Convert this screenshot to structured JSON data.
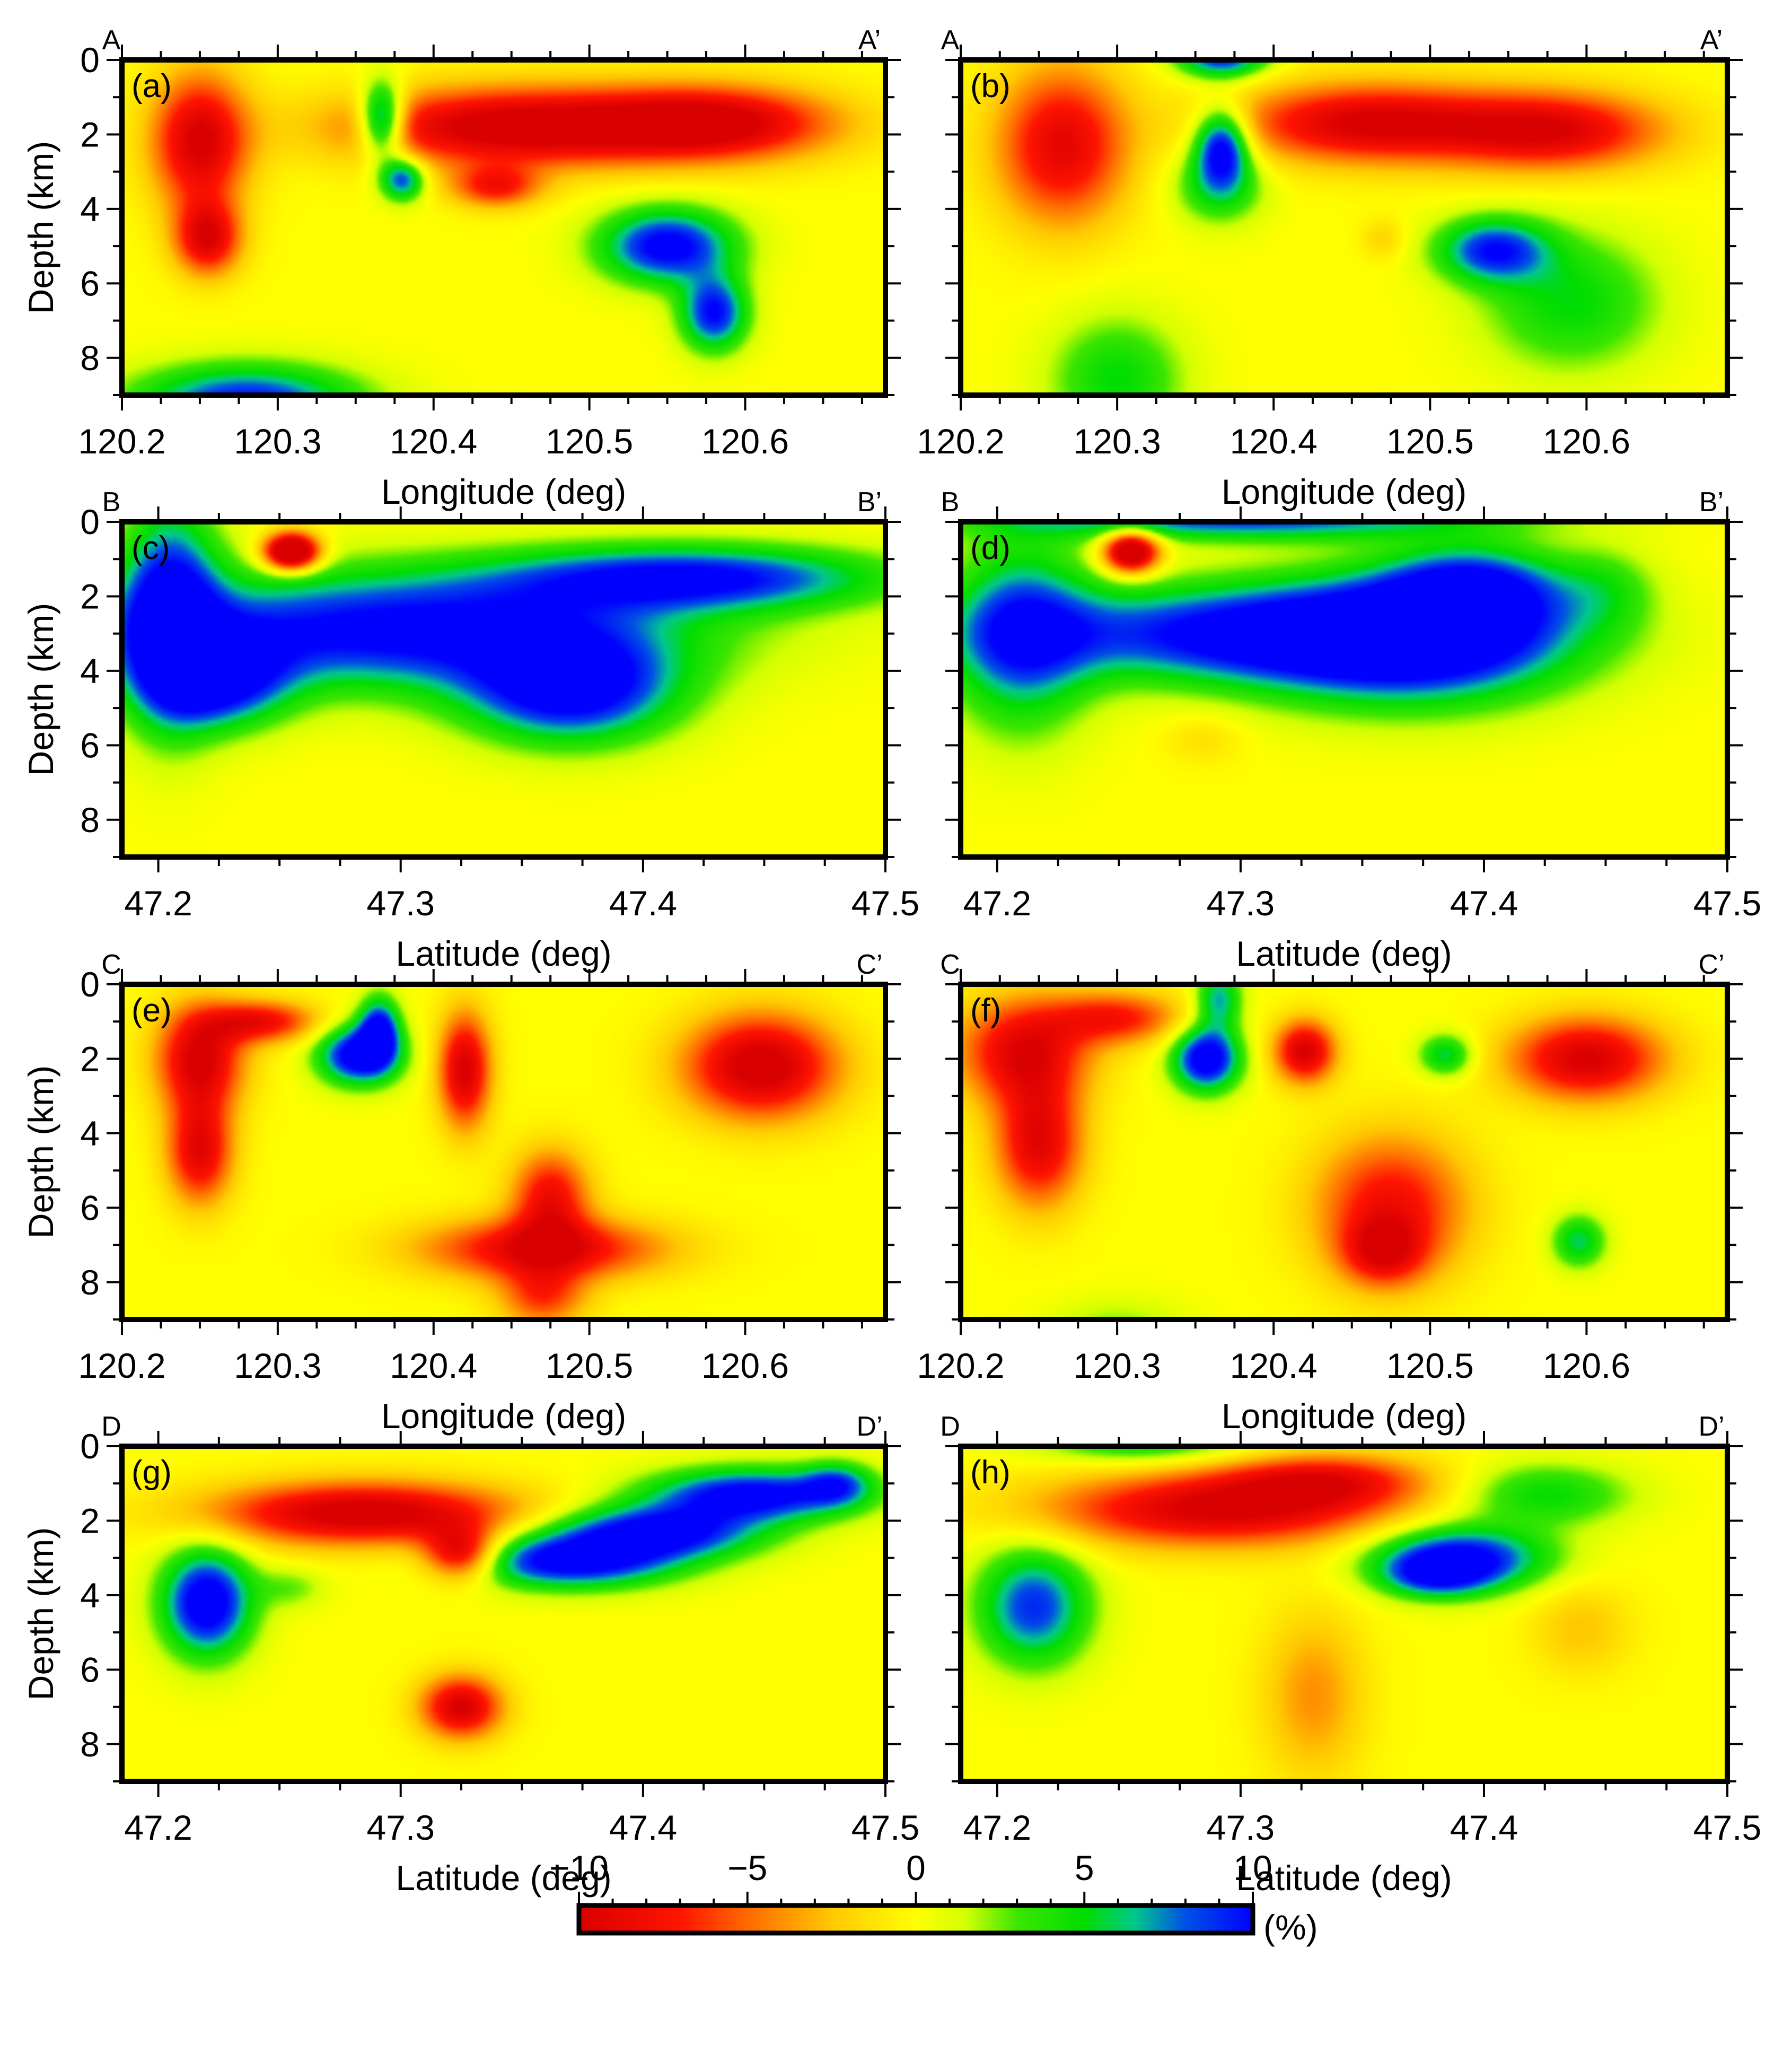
{
  "chart_data": {
    "type": "heatmap",
    "panels": [
      {
        "label": "(a)",
        "start": "A",
        "end": "A’",
        "xlabel": "Longitude (deg)",
        "ylabel": "Depth (km)",
        "xlim": [
          120.2,
          120.69
        ],
        "xticks": [
          "120.2",
          "120.3",
          "120.4",
          "120.5",
          "120.6"
        ],
        "xtick_values": [
          120.2,
          120.3,
          120.4,
          120.5,
          120.6
        ],
        "ylim": [
          0,
          9
        ],
        "yticks": [
          "0",
          "2",
          "4",
          "6",
          "8"
        ],
        "ytick_values": [
          0,
          2,
          4,
          6,
          8
        ],
        "anomalies": [
          {
            "x": 120.25,
            "y": 2.2,
            "sx": 0.022,
            "sy": 1.3,
            "v": -10
          },
          {
            "x": 120.255,
            "y": 4.8,
            "sx": 0.015,
            "sy": 0.7,
            "v": -9
          },
          {
            "x": 120.367,
            "y": 1.6,
            "sx": 0.01,
            "sy": 0.7,
            "v": 11
          },
          {
            "x": 120.38,
            "y": 3.2,
            "sx": 0.01,
            "sy": 0.4,
            "v": 9
          },
          {
            "x": 120.45,
            "y": 1.8,
            "sx": 0.075,
            "sy": 0.75,
            "v": -11
          },
          {
            "x": 120.58,
            "y": 1.7,
            "sx": 0.055,
            "sy": 0.7,
            "v": -10
          },
          {
            "x": 120.44,
            "y": 3.4,
            "sx": 0.02,
            "sy": 0.4,
            "v": -7
          },
          {
            "x": 120.55,
            "y": 5.0,
            "sx": 0.03,
            "sy": 0.7,
            "v": 11
          },
          {
            "x": 120.58,
            "y": 6.8,
            "sx": 0.015,
            "sy": 0.7,
            "v": 10
          },
          {
            "x": 120.28,
            "y": 9.2,
            "sx": 0.05,
            "sy": 0.7,
            "v": 10
          }
        ]
      },
      {
        "label": "(b)",
        "start": "A",
        "end": "A’",
        "xlabel": "Longitude (deg)",
        "ylabel": "",
        "xlim": [
          120.2,
          120.69
        ],
        "xticks": [
          "120.2",
          "120.3",
          "120.4",
          "120.5",
          "120.6"
        ],
        "xtick_values": [
          120.2,
          120.3,
          120.4,
          120.5,
          120.6
        ],
        "ylim": [
          0,
          9
        ],
        "yticks": [],
        "ytick_values": [
          0,
          2,
          4,
          6,
          8
        ],
        "anomalies": [
          {
            "x": 120.265,
            "y": 2.3,
            "sx": 0.03,
            "sy": 1.5,
            "v": -9
          },
          {
            "x": 120.367,
            "y": 2.3,
            "sx": 0.012,
            "sy": 0.7,
            "v": 11
          },
          {
            "x": 120.365,
            "y": 3.4,
            "sx": 0.02,
            "sy": 0.7,
            "v": 5
          },
          {
            "x": 120.367,
            "y": -0.1,
            "sx": 0.02,
            "sy": 0.4,
            "v": 10
          },
          {
            "x": 120.46,
            "y": 1.7,
            "sx": 0.06,
            "sy": 0.75,
            "v": -10
          },
          {
            "x": 120.58,
            "y": 1.9,
            "sx": 0.05,
            "sy": 0.75,
            "v": -9
          },
          {
            "x": 120.54,
            "y": 5.1,
            "sx": 0.025,
            "sy": 0.6,
            "v": 9
          },
          {
            "x": 120.59,
            "y": 6.5,
            "sx": 0.04,
            "sy": 1.3,
            "v": 5
          },
          {
            "x": 120.3,
            "y": 8.6,
            "sx": 0.03,
            "sy": 1.2,
            "v": 5
          },
          {
            "x": 120.47,
            "y": 4.8,
            "sx": 0.01,
            "sy": 0.4,
            "v": -2
          }
        ]
      },
      {
        "label": "(c)",
        "start": "B",
        "end": "B’",
        "xlabel": "Latitude (deg)",
        "ylabel": "Depth (km)",
        "xlim": [
          47.185,
          47.5
        ],
        "xticks": [
          "47.2",
          "47.3",
          "47.4",
          "47.5"
        ],
        "xtick_values": [
          47.2,
          47.3,
          47.4,
          47.5
        ],
        "ylim": [
          0,
          9
        ],
        "yticks": [
          "0",
          "2",
          "4",
          "6",
          "8"
        ],
        "ytick_values": [
          0,
          2,
          4,
          6,
          8
        ],
        "anomalies": [
          {
            "x": 47.205,
            "y": 2.5,
            "sx": 0.014,
            "sy": 2.0,
            "v": 11
          },
          {
            "x": 47.3,
            "y": 2.9,
            "sx": 0.08,
            "sy": 1.1,
            "v": 11
          },
          {
            "x": 47.37,
            "y": 4.5,
            "sx": 0.03,
            "sy": 1.0,
            "v": 11
          },
          {
            "x": 47.42,
            "y": 1.5,
            "sx": 0.055,
            "sy": 0.6,
            "v": 10
          },
          {
            "x": 47.225,
            "y": 4.2,
            "sx": 0.02,
            "sy": 0.9,
            "v": 10
          },
          {
            "x": 47.255,
            "y": 0.8,
            "sx": 0.008,
            "sy": 0.35,
            "v": -16
          }
        ]
      },
      {
        "label": "(d)",
        "start": "B",
        "end": "B’",
        "xlabel": "Latitude (deg)",
        "ylabel": "",
        "xlim": [
          47.185,
          47.5
        ],
        "xticks": [
          "47.2",
          "47.3",
          "47.4",
          "47.5"
        ],
        "xtick_values": [
          47.2,
          47.3,
          47.4,
          47.5
        ],
        "ylim": [
          0,
          9
        ],
        "yticks": [],
        "ytick_values": [
          0,
          2,
          4,
          6,
          8
        ],
        "anomalies": [
          {
            "x": 47.21,
            "y": 3.0,
            "sx": 0.02,
            "sy": 1.8,
            "v": 8
          },
          {
            "x": 47.3,
            "y": 3.0,
            "sx": 0.07,
            "sy": 0.9,
            "v": 10
          },
          {
            "x": 47.37,
            "y": 3.2,
            "sx": 0.045,
            "sy": 1.2,
            "v": 11
          },
          {
            "x": 47.395,
            "y": 1.8,
            "sx": 0.025,
            "sy": 0.8,
            "v": 9
          },
          {
            "x": 47.3,
            "y": -0.1,
            "sx": 0.07,
            "sy": 0.4,
            "v": 9
          },
          {
            "x": 47.255,
            "y": 0.8,
            "sx": 0.008,
            "sy": 0.4,
            "v": -14
          },
          {
            "x": 47.285,
            "y": 5.8,
            "sx": 0.012,
            "sy": 0.5,
            "v": -1.5
          },
          {
            "x": 47.45,
            "y": 1.8,
            "sx": 0.015,
            "sy": 0.8,
            "v": 3
          }
        ]
      },
      {
        "label": "(e)",
        "start": "C",
        "end": "C’",
        "xlabel": "Longitude (deg)",
        "ylabel": "Depth (km)",
        "xlim": [
          120.2,
          120.69
        ],
        "xticks": [
          "120.2",
          "120.3",
          "120.4",
          "120.5",
          "120.6"
        ],
        "xtick_values": [
          120.2,
          120.3,
          120.4,
          120.5,
          120.6
        ],
        "ylim": [
          0,
          9
        ],
        "yticks": [
          "0",
          "2",
          "4",
          "6",
          "8"
        ],
        "ytick_values": [
          0,
          2,
          4,
          6,
          8
        ],
        "anomalies": [
          {
            "x": 120.25,
            "y": 2.0,
            "sx": 0.02,
            "sy": 1.0,
            "v": -10
          },
          {
            "x": 120.25,
            "y": 4.5,
            "sx": 0.015,
            "sy": 1.0,
            "v": -9
          },
          {
            "x": 120.29,
            "y": 1.0,
            "sx": 0.025,
            "sy": 0.4,
            "v": -8
          },
          {
            "x": 120.352,
            "y": 1.9,
            "sx": 0.018,
            "sy": 0.55,
            "v": 12
          },
          {
            "x": 120.365,
            "y": 1.2,
            "sx": 0.009,
            "sy": 0.6,
            "v": 10
          },
          {
            "x": 120.42,
            "y": 2.3,
            "sx": 0.012,
            "sy": 1.1,
            "v": -10
          },
          {
            "x": 120.61,
            "y": 2.2,
            "sx": 0.035,
            "sy": 1.0,
            "v": -11
          },
          {
            "x": 120.475,
            "y": 5.7,
            "sx": 0.018,
            "sy": 0.9,
            "v": -8
          },
          {
            "x": 120.47,
            "y": 7.1,
            "sx": 0.055,
            "sy": 0.6,
            "v": -9
          },
          {
            "x": 120.47,
            "y": 8.4,
            "sx": 0.02,
            "sy": 0.6,
            "v": -6
          }
        ]
      },
      {
        "label": "(f)",
        "start": "C",
        "end": "C’",
        "xlabel": "Longitude (deg)",
        "ylabel": "",
        "xlim": [
          120.2,
          120.69
        ],
        "xticks": [
          "120.2",
          "120.3",
          "120.4",
          "120.5",
          "120.6"
        ],
        "xtick_values": [
          120.2,
          120.3,
          120.4,
          120.5,
          120.6
        ],
        "ylim": [
          0,
          9
        ],
        "yticks": [],
        "ytick_values": [
          0,
          2,
          4,
          6,
          8
        ],
        "anomalies": [
          {
            "x": 120.24,
            "y": 1.8,
            "sx": 0.03,
            "sy": 1.0,
            "v": -9
          },
          {
            "x": 120.25,
            "y": 4.3,
            "sx": 0.02,
            "sy": 1.2,
            "v": -9
          },
          {
            "x": 120.3,
            "y": 0.9,
            "sx": 0.03,
            "sy": 0.5,
            "v": -7
          },
          {
            "x": 120.357,
            "y": 2.0,
            "sx": 0.015,
            "sy": 0.6,
            "v": 12
          },
          {
            "x": 120.365,
            "y": 0.4,
            "sx": 0.01,
            "sy": 0.6,
            "v": 7
          },
          {
            "x": 120.42,
            "y": 1.8,
            "sx": 0.014,
            "sy": 0.6,
            "v": -10
          },
          {
            "x": 120.51,
            "y": 1.9,
            "sx": 0.012,
            "sy": 0.4,
            "v": 6
          },
          {
            "x": 120.6,
            "y": 2.0,
            "sx": 0.035,
            "sy": 0.8,
            "v": -10
          },
          {
            "x": 120.475,
            "y": 6.0,
            "sx": 0.035,
            "sy": 1.4,
            "v": -8
          },
          {
            "x": 120.47,
            "y": 7.2,
            "sx": 0.018,
            "sy": 0.6,
            "v": -6
          },
          {
            "x": 120.595,
            "y": 6.9,
            "sx": 0.012,
            "sy": 0.5,
            "v": 6
          },
          {
            "x": 120.3,
            "y": 9.3,
            "sx": 0.03,
            "sy": 0.6,
            "v": 2.5
          }
        ]
      },
      {
        "label": "(g)",
        "start": "D",
        "end": "D’",
        "xlabel": "Latitude (deg)",
        "ylabel": "Depth (km)",
        "xlim": [
          47.185,
          47.5
        ],
        "xticks": [
          "47.2",
          "47.3",
          "47.4",
          "47.5"
        ],
        "xtick_values": [
          47.2,
          47.3,
          47.4,
          47.5
        ],
        "ylim": [
          0,
          9
        ],
        "yticks": [
          "0",
          "2",
          "4",
          "6",
          "8"
        ],
        "ytick_values": [
          0,
          2,
          4,
          6,
          8
        ],
        "anomalies": [
          {
            "x": 47.285,
            "y": 1.8,
            "sx": 0.045,
            "sy": 0.6,
            "v": -11
          },
          {
            "x": 47.325,
            "y": 2.9,
            "sx": 0.011,
            "sy": 0.5,
            "v": -10
          },
          {
            "x": 47.22,
            "y": 4.2,
            "sx": 0.013,
            "sy": 1.0,
            "v": 12
          },
          {
            "x": 47.37,
            "y": 3.1,
            "sx": 0.03,
            "sy": 0.5,
            "v": 11
          },
          {
            "x": 47.405,
            "y": 2.3,
            "sx": 0.03,
            "sy": 0.5,
            "v": 11
          },
          {
            "x": 47.445,
            "y": 1.3,
            "sx": 0.03,
            "sy": 0.5,
            "v": 11
          },
          {
            "x": 47.48,
            "y": 1.0,
            "sx": 0.01,
            "sy": 0.4,
            "v": 6
          },
          {
            "x": 47.325,
            "y": 7.0,
            "sx": 0.012,
            "sy": 0.6,
            "v": -10
          },
          {
            "x": 47.255,
            "y": 3.8,
            "sx": 0.01,
            "sy": 0.4,
            "v": 2.5
          }
        ]
      },
      {
        "label": "(h)",
        "start": "D",
        "end": "D’",
        "xlabel": "Latitude (deg)",
        "ylabel": "",
        "xlim": [
          47.185,
          47.5
        ],
        "xticks": [
          "47.2",
          "47.3",
          "47.4",
          "47.5"
        ],
        "xtick_values": [
          47.2,
          47.3,
          47.4,
          47.5
        ],
        "ylim": [
          0,
          9
        ],
        "yticks": [],
        "ytick_values": [
          0,
          2,
          4,
          6,
          8
        ],
        "anomalies": [
          {
            "x": 47.29,
            "y": 1.7,
            "sx": 0.05,
            "sy": 0.7,
            "v": -10
          },
          {
            "x": 47.335,
            "y": 0.9,
            "sx": 0.03,
            "sy": 0.5,
            "v": -7
          },
          {
            "x": 47.215,
            "y": 4.3,
            "sx": 0.016,
            "sy": 1.1,
            "v": 9
          },
          {
            "x": 47.39,
            "y": 3.0,
            "sx": 0.025,
            "sy": 0.6,
            "v": 11
          },
          {
            "x": 47.38,
            "y": 3.5,
            "sx": 0.015,
            "sy": 0.4,
            "v": 6
          },
          {
            "x": 47.425,
            "y": 1.3,
            "sx": 0.025,
            "sy": 0.6,
            "v": 5
          },
          {
            "x": 47.33,
            "y": 6.7,
            "sx": 0.015,
            "sy": 1.6,
            "v": -4
          },
          {
            "x": 47.44,
            "y": 4.9,
            "sx": 0.015,
            "sy": 0.9,
            "v": -2.5
          },
          {
            "x": 47.26,
            "y": -0.1,
            "sx": 0.03,
            "sy": 0.4,
            "v": 5
          }
        ]
      }
    ],
    "colorbar": {
      "min": -10,
      "max": 10,
      "ticks": [
        "−10",
        "−5",
        "0",
        "5",
        "10"
      ],
      "tick_values": [
        -10,
        -5,
        0,
        5,
        10
      ],
      "unit": "(%)",
      "colors": [
        "#d90000",
        "#ff6a00",
        "#ffff00",
        "#00dd00",
        "#0000ff"
      ]
    }
  }
}
